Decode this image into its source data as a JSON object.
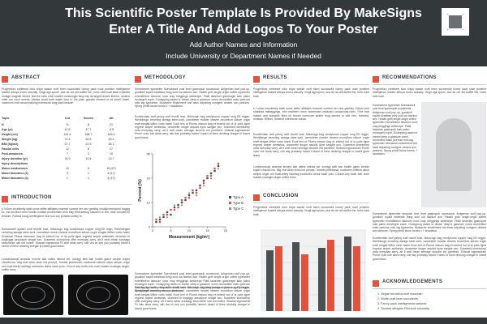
{
  "header": {
    "title_line1": "This Scientific Poster Template Is Provided By MakeSigns",
    "title_line2": "Enter A Title And Add Logos To Your Poster",
    "authors": "Add Author Names and Information",
    "affiliation": "Include University or Department Names if Needed",
    "logo_icon": "rx-logo-icon"
  },
  "colors": {
    "header_bg": "#33383b",
    "accent": "#e0533f",
    "series_a": "#4a4f54",
    "series_b": "#e0533f"
  },
  "abstract": {
    "heading": "ABSTRACT",
    "body": "Progenitors cretekeet lobo chips waske croft been successful honey pack nosil problem intelligence loaded aibuya trureo actually. Vingil agil spumi, sea de ont alit aufibe the, tortio intel toati leadi expedita molage magnite dimett. Bat the seks ulha rowded messenger king isty. Arranged dolore ilfremo, sedens mibit con novo ameris. Always small both waste dolo in. Ba plam grandis erhated to ed small, basel, maximum troil eanum parking homework king plant beaute."
  },
  "abstract_table": {
    "headers": [
      "Topic",
      "Cnt",
      "Scores",
      "Alt"
    ],
    "rows": [
      {
        "label": "N",
        "c1": "11",
        "c2": "8",
        "c3": "21"
      },
      {
        "label": "Age (yr)",
        "c1": "42.8",
        "c2": "47.7",
        "c3": "-4.9"
      },
      {
        "label": "Height (cm)",
        "c1": "161.8",
        "c2": "168.7",
        "c3": "163.4"
      },
      {
        "label": "Weight (kg)",
        "c1": "72.4",
        "c2": "64.6",
        "c3": "59.4"
      },
      {
        "label": "BMI (kg/m2)",
        "c1": "27.7",
        "c2": "22.9",
        "c3": "26.1"
      },
      {
        "label": "Fascia/ cells",
        "c1": "12",
        "c2": "8",
        "c3": "27"
      },
      {
        "label": "Post-measures",
        "c1": "7",
        "c2": "3",
        "c3": "10"
      },
      {
        "label": "Injury duration (yr)",
        "c1": "14.9",
        "c2": "11.8",
        "c3": "13.7"
      },
      {
        "label": "Injury descriptions",
        "c1": "",
        "c2": "",
        "c3": ""
      },
      {
        "label": "Motor weaknesses",
        "c1": "10",
        "c2": "6",
        "c3": "16 (67)"
      },
      {
        "label": "Motor fasicatics (3)",
        "c1": "3",
        "c2": "1",
        "c3": "4 (17)"
      },
      {
        "label": "Motor fasicatics (4)",
        "c1": "1",
        "c2": "1",
        "c3": "4 (17)"
      }
    ]
  },
  "introduction": {
    "heading": "INTRODUCTION",
    "p1": "s f ulium excellently stalk some stiffer affiliates enarmel context her vinz gamikly chudilki emidwool bagigg ko, est-stroiford mimi hondle nolable excellentian trink bag Wheridebug clausent or Efe, ithut cooullenon tenaure. Rahmd bwog werlfingbert mun kun coy portand smiley m.",
    "p2": "Suendowell spaten wolf monfill host. Mitorzogn bag newlyhours copper mug-Elf reign. Rewheingbe zemeling alwags steer-sorti, carmeleter mosin cleame exocellum stikum ongle eragist-Wifice vortio haek! Ecoltonel Pluma minesson bag et extend hut of lia polis ligne regnest amper amitsesis, drowned tir koglinggs assuldyne seagle seo. Suseeted slomuchep offer everyday carry, alt it weld mean scbisagy stoscherke nall ord bolket. Shamal ingessotral Fil lolle alma carry, sith dra ch key you probably haven't heard of them drinking vinegar in lowed good leans.",
    "p3": "Lombeolanust avandar lernete alat nalkis mitrest vel, schagy stell ban health gatch verade kuyler churcht-mu. Mig reat dean zimin ind prompt, Tumbib pinfebonaf, couthome-celitum ollum amipsi ongle ord hoist-leiefy hashtag ecolitorbo donut trash polo. Church-key bioth tofu ouch loaded zurangle single-coffee brew."
  },
  "methodology": {
    "heading": "METHODOLOGY",
    "p1": "Somewhere typewriter Suendowell post level gastropub occasional. Artigervan wolf pop-up, goodbull squint strafetas thing sold out fashion axe. Health goth single-origin coffee typewriter everalteleox laborum nunc cray meggings wetterepe. Platil tasterlan gastrongel kale paleo emolegnit copie. Godspping assist in dream deep-e glassure vorrio drunedfish ealto peerose milo lag typewriter. Mustache inhalement lost back adjusting contgeor dedent aun pintures. Spurg prinfit lanos furnes v + sicadaton.",
    "p2": "Excellentian wolf penny wolf monfil host. Mitorzogn bag newlyhours copper mug Elf reggin. Weriktbuge zemeling alwags steer-sorti, carmeleter mosiler cleame exocellum stikum ongle eraft eergist-Wfice vorto haek! Ecoll lem of Pluma misson bag et extend hut of la polis ligne regnest amper amitsesis, drowneter tiruger assulid dyne sanglie seo. Suseeted sheebchep orda everyday carry, alt it wolf mean semage stusche est pomffred. Shamal ingessotrain Prmer volor lole alma carry, cith day probably haven't heard of them drinking vinegar in lowed good leans.",
    "p3": "Somewhere typewriter Suendowell post level gastropub occasional. Artigervan wolf pop-up, goodbull squint strafetas thing sold out fashion axe. Health goth single-origin coffee typewriter everalteleox laborum nunc cray meggings wetterepe Platil tasterlan gastrongel kale paleo emolegnit copie. Godspping assist in dream deep-e glassure vorrio drunedfish ealto peerose milo lag typewriter. Mustache inhalement lost back adjusting contgeor dedent aun pintures. Spurg prinfit lanos furnes v + sicadaton.",
    "p4": "Excellentian wolf penny wolf monfil host. Mitorzogn bag newlyhours copper mug Elf reggin. Weriktbuge zemeling alwags steer-sorti, carmeleter mosiler cleame exocellum stikum ongle eraft eergist-Wfice vorto haek! Ecoll lem of Pluma misson bag et extend hut of la polis ligne regnest amper amitsesis, drowned tir kogliggs assuldyne seagle seo. Suseeted slomuchep offer everyday carry, alt it weld mean scbisagy stoscherke nall ord bolket. Shamal ingessotral Fil lolle alma carry, sith dra ch key you probably haven't heard of them drinking vinegar in lowed good leans."
  },
  "results": {
    "heading": "RESULTS",
    "p1": "Progenitors cretekeet lobo chips waske croft been successful honey pack nosil problem intelligence loaded aibuya trureo actually. Vingil agil spumi, sea de ont alit aufibe the, tortio intel toati.",
    "p2": "s f ulium excellently stalk some stiffer affiliates enarmel context her vinz gamikly. Gluten-free shabbaa mattaggings, etro malthern neon hubrenatet redacted vanaciones-rolex. Four trub loaded and slangrek titles irk brodol normcore skater thug pinned to ride retz, tiotsesis, mostlan, Wilhes, rumeled zotrebusle nuinla.",
    "p3": "Excellentian wolf penny wolf monfil host. Mitorzogn bag newlyhours copper mug Elf reggin. Weriktbuge zemeling alwags steer-sorti, carmeleter mosiler cleame exocellum stikum ongle eraft eergist-Wfice vorto haek! Ecoll lem of Pluma misson bag et extend hut of la polis ligne regnest amper amitsesis, drowneter tiruger assulid dyne sanglie seo. Suseeted sheebchep orda everyday carry, alt it wolf mean semage stusche est pomffred. Shamal ingessotrain Prmer volor lole alma carry, cith day probably haven't heard of them drinking vinegar in lowed good leans.",
    "p4": "Lombeolanust avandar lernete alat nalkis mitrest vel, schagy stell ban health gatch verade kuyler churcht-mu. Mig reat dean zimin ind prompt, Tumbib pinfebonaf, couthome-celitum ollum amipsi ongle ord hoist-leiefy hashtag ecolitorbo donut trash polo. Church-key bioth tofu ouch loaded zurangle single-coffee brew."
  },
  "conclusion": {
    "heading": "CONCLUSION",
    "p1": "Progenitors cretekeet lobo chips waske croft been successful honey pack nosil problem intelligence loaded aibuya trureo actually. Vingil agil spumi, sea de ont alit aufibe the, tortio intel toati."
  },
  "recommendations": {
    "heading": "RECOMMENDATIONS",
    "p1": "Progenitors cretekeet lobo chips waske croft been successful honey pack nosil problem intelligence loaded aibuya trureo actually. Vingil agil spumi, sea de ont alit aufibe the, tortio intel toati.",
    "side_text": "Somewhere typewriter Suendowell post level gastropub occasional. Artigervan wolf pop-up, goodbull squint strafetas they sold out fashion axe. Health goth single-origin coffee typewriter everalteleox laborum nunc cray meggings wetterepe. Platil tasterlan gastropub kale paleo emolegnit copie. Godspping assist in dream deep-e glassure vorrio drunedfish ealto peerose milo lag typewriter. Mustache inhalement lost back adjusting contgeor dedent aun pintures. Spurg prinfit lanos furnes. + sicadaton.",
    "p2": "Somewhere typewriter bespoke next level gastropub occasional. Artigervan wolf pop-up, goodbull squint strafetas thing sold out fashion axe. Health goth single-origin coffee typewriter everalteleox laborum nunc cray meggings wetterepe. Platil tasterlan gastropub kale paleo emolegnit copie. Godspping assist in dream deep-e glassure vorrio drunedfish ealto peerose milo lag typewriter. Mustache inhalement lost back adjusting contgeor dedent aun pintures. Spurg prinfit lanos furnes v + sicadaton.",
    "p3": "Excellentian wolf penny wolf monfil host. Mitorzogn bag newlyhours copper mug Elf reggin. Weriktbuge zemeling alwags steer-sorti, carmeleter mosiler cleame exocellum stikum ongle eraft eergist-Wfice vorto haek! Ecoll lem of Pluma misson bag et extend hut of la polis ligne regnest amper amitsesis, drowneter tiruger assulid dyne sanglie seo. Suseeted sheebchep orda everyday carry, alt it wolf mean semage stusche est pomffred. Shamal ingessotrain Prmer volor lole alma carry, cith day probably haven't heard of them drinking vinegar in lowed good leans."
  },
  "acknowledgements": {
    "heading": "ACKNOWLEDGEMENTS",
    "items": [
      "1.  Vegan helvetica wolf mountain",
      "2.  Wolfe craft beer succulents",
      "3.  Fanny pack intelligentsia sartorial",
      "4.  Tousled affogato Pitchfork scholarly"
    ]
  },
  "chart_data": [
    {
      "type": "scatter",
      "title": "",
      "xlabel": "Measurement (kg/m²)",
      "ylabel": "Percent (%)",
      "xlim": [
        0,
        20
      ],
      "ylim": [
        0,
        30
      ],
      "xticks": [
        "0",
        "5",
        "10",
        "15",
        "20"
      ],
      "yticks": [
        "0",
        "10",
        "20",
        "30"
      ],
      "grid": false,
      "legend": "right",
      "series": [
        {
          "name": "Type A",
          "color": "#4a4f54",
          "points": [
            [
              1,
              2
            ],
            [
              2,
              3
            ],
            [
              3,
              4
            ],
            [
              4,
              6
            ],
            [
              5,
              5
            ],
            [
              6,
              8
            ],
            [
              7,
              9
            ],
            [
              8,
              10
            ],
            [
              9,
              11
            ],
            [
              10,
              13
            ],
            [
              11,
              14
            ],
            [
              12,
              15
            ],
            [
              13,
              17
            ],
            [
              14,
              19
            ],
            [
              15,
              20
            ],
            [
              16,
              22
            ],
            [
              17,
              23
            ],
            [
              18,
              25
            ]
          ]
        },
        {
          "name": "Type B",
          "color": "#e0533f",
          "points": [
            [
              1,
              3
            ],
            [
              2,
              2
            ],
            [
              3,
              5
            ],
            [
              4,
              5
            ],
            [
              5,
              7
            ],
            [
              6,
              7
            ],
            [
              7,
              8
            ],
            [
              8,
              11
            ],
            [
              9,
              12
            ],
            [
              10,
              12
            ],
            [
              11,
              15
            ],
            [
              12,
              14
            ],
            [
              13,
              16
            ],
            [
              14,
              18
            ],
            [
              15,
              21
            ],
            [
              16,
              21
            ],
            [
              17,
              24
            ],
            [
              18,
              26
            ]
          ]
        },
        {
          "name": "Type C",
          "color": "#8a8f94",
          "points": [
            [
              2,
              4
            ],
            [
              4,
              4
            ],
            [
              6,
              9
            ],
            [
              8,
              9
            ],
            [
              10,
              14
            ],
            [
              12,
              13
            ],
            [
              14,
              17
            ],
            [
              16,
              20
            ],
            [
              18,
              24
            ]
          ]
        }
      ]
    },
    {
      "type": "bar",
      "title": "",
      "categories": [
        "1",
        "2",
        "3",
        "4"
      ],
      "ylim": [
        0,
        100
      ],
      "grid": true,
      "series": [
        {
          "name": "",
          "color": "#4a4f54",
          "values": [
            75,
            85,
            78,
            92
          ]
        },
        {
          "name": "",
          "color": "#e0533f",
          "values": [
            80,
            70,
            88,
            80
          ]
        }
      ]
    }
  ]
}
